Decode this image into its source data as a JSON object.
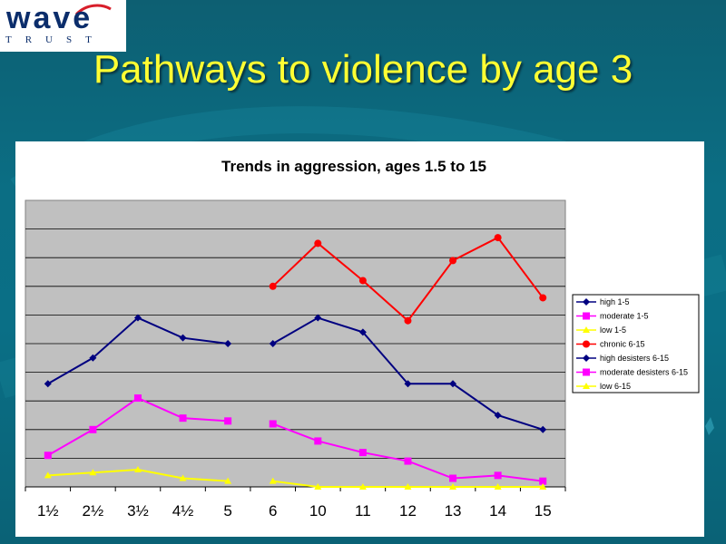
{
  "slide": {
    "title": "Pathways to violence by age 3"
  },
  "logo": {
    "word": "wave",
    "sub": "TRUST"
  },
  "colors": {
    "title": "#ffff33",
    "background": "#0a6f86"
  },
  "chart_data": {
    "type": "line",
    "title": "Trends in aggression, ages 1.5 to 15",
    "xlabel": "",
    "ylabel": "",
    "categories": [
      "1½",
      "2½",
      "3½",
      "4½",
      "5",
      "6",
      "10",
      "11",
      "12",
      "13",
      "14",
      "15"
    ],
    "ylim": [
      0,
      10
    ],
    "grid": true,
    "legend_position": "right",
    "series": [
      {
        "name": "high 1-5",
        "color": "#000080",
        "marker": "diamond",
        "values": [
          3.6,
          4.5,
          5.9,
          5.2,
          5.0,
          null,
          null,
          null,
          null,
          null,
          null,
          null
        ]
      },
      {
        "name": "moderate 1-5",
        "color": "#ff00ff",
        "marker": "square",
        "values": [
          1.1,
          2.0,
          3.1,
          2.4,
          2.3,
          null,
          null,
          null,
          null,
          null,
          null,
          null
        ]
      },
      {
        "name": "low 1-5",
        "color": "#ffff00",
        "marker": "triangle",
        "values": [
          0.4,
          0.5,
          0.6,
          0.3,
          0.2,
          null,
          null,
          null,
          null,
          null,
          null,
          null
        ]
      },
      {
        "name": "chronic 6-15",
        "color": "#ff0000",
        "marker": "circle",
        "values": [
          null,
          null,
          null,
          null,
          null,
          7.0,
          8.5,
          7.2,
          5.8,
          7.9,
          8.7,
          6.6
        ]
      },
      {
        "name": "high desisters 6-15",
        "color": "#000080",
        "marker": "diamond",
        "values": [
          null,
          null,
          null,
          null,
          null,
          5.0,
          5.9,
          5.4,
          3.6,
          3.6,
          2.5,
          2.0
        ]
      },
      {
        "name": "moderate desisters 6-15",
        "color": "#ff00ff",
        "marker": "square",
        "values": [
          null,
          null,
          null,
          null,
          null,
          2.2,
          1.6,
          1.2,
          0.9,
          0.3,
          0.4,
          0.2
        ]
      },
      {
        "name": "low 6-15",
        "color": "#ffff00",
        "marker": "triangle",
        "values": [
          null,
          null,
          null,
          null,
          null,
          0.2,
          0.0,
          0.0,
          0.0,
          0.0,
          0.0,
          0.0
        ]
      }
    ]
  }
}
